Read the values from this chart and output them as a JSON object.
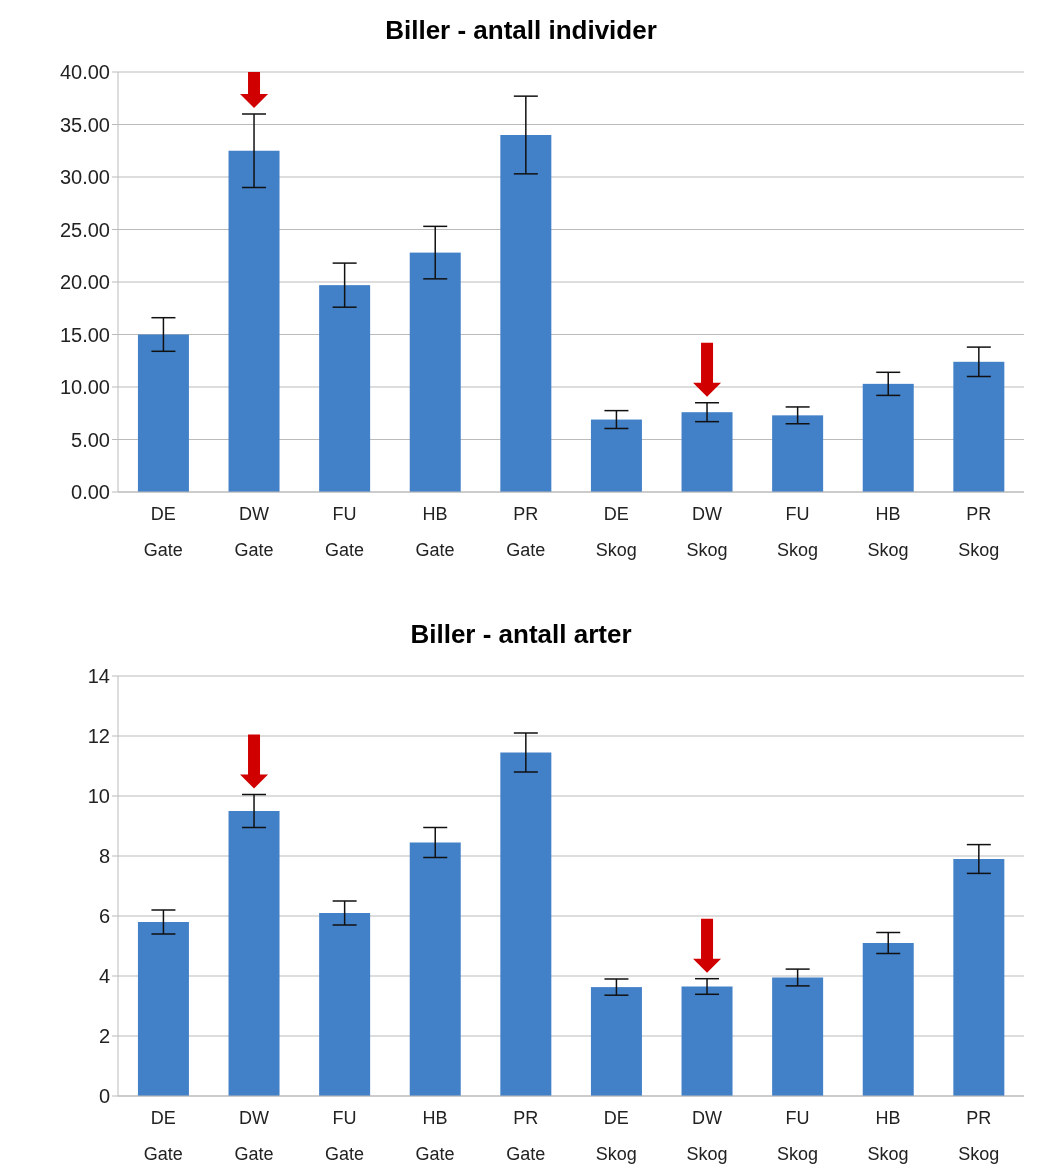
{
  "chart_data": [
    {
      "type": "bar",
      "title": "Biller - antall individer",
      "categories": [
        "DE\nGate",
        "DW\nGate",
        "FU\nGate",
        "HB\nGate",
        "PR\nGate",
        "DE\nSkog",
        "DW\nSkog",
        "FU\nSkog",
        "HB\nSkog",
        "PR\nSkog"
      ],
      "values": [
        15.0,
        32.5,
        19.7,
        22.8,
        34.0,
        6.9,
        7.6,
        7.3,
        10.3,
        12.4
      ],
      "errors": [
        1.6,
        3.5,
        2.1,
        2.5,
        3.7,
        0.85,
        0.9,
        0.8,
        1.1,
        1.4
      ],
      "color": "#4280c8",
      "ylim": [
        0,
        40
      ],
      "yticks": [
        {
          "value": 0,
          "label": "0.00"
        },
        {
          "value": 5,
          "label": "5.00"
        },
        {
          "value": 10,
          "label": "10.00"
        },
        {
          "value": 15,
          "label": "15.00"
        },
        {
          "value": 20,
          "label": "20.00"
        },
        {
          "value": 25,
          "label": "25.00"
        },
        {
          "value": 30,
          "label": "30.00"
        },
        {
          "value": 35,
          "label": "35.00"
        },
        {
          "value": 40,
          "label": "40.00"
        }
      ],
      "grid": "y",
      "legend": false
    },
    {
      "type": "bar",
      "title": "Biller - antall arter",
      "categories": [
        "DE\nGate",
        "DW\nGate",
        "FU\nGate",
        "HB\nGate",
        "PR\nGate",
        "DE\nSkog",
        "DW\nSkog",
        "FU\nSkog",
        "HB\nSkog",
        "PR\nSkog"
      ],
      "values": [
        5.8,
        9.5,
        6.1,
        8.45,
        11.45,
        3.63,
        3.65,
        3.95,
        5.1,
        7.9
      ],
      "errors": [
        0.4,
        0.55,
        0.4,
        0.5,
        0.65,
        0.27,
        0.26,
        0.28,
        0.35,
        0.48
      ],
      "color": "#4280c8",
      "ylim": [
        0,
        14
      ],
      "yticks": [
        0,
        2,
        4,
        6,
        8,
        10,
        12,
        14
      ],
      "grid": "y",
      "legend": false
    }
  ]
}
